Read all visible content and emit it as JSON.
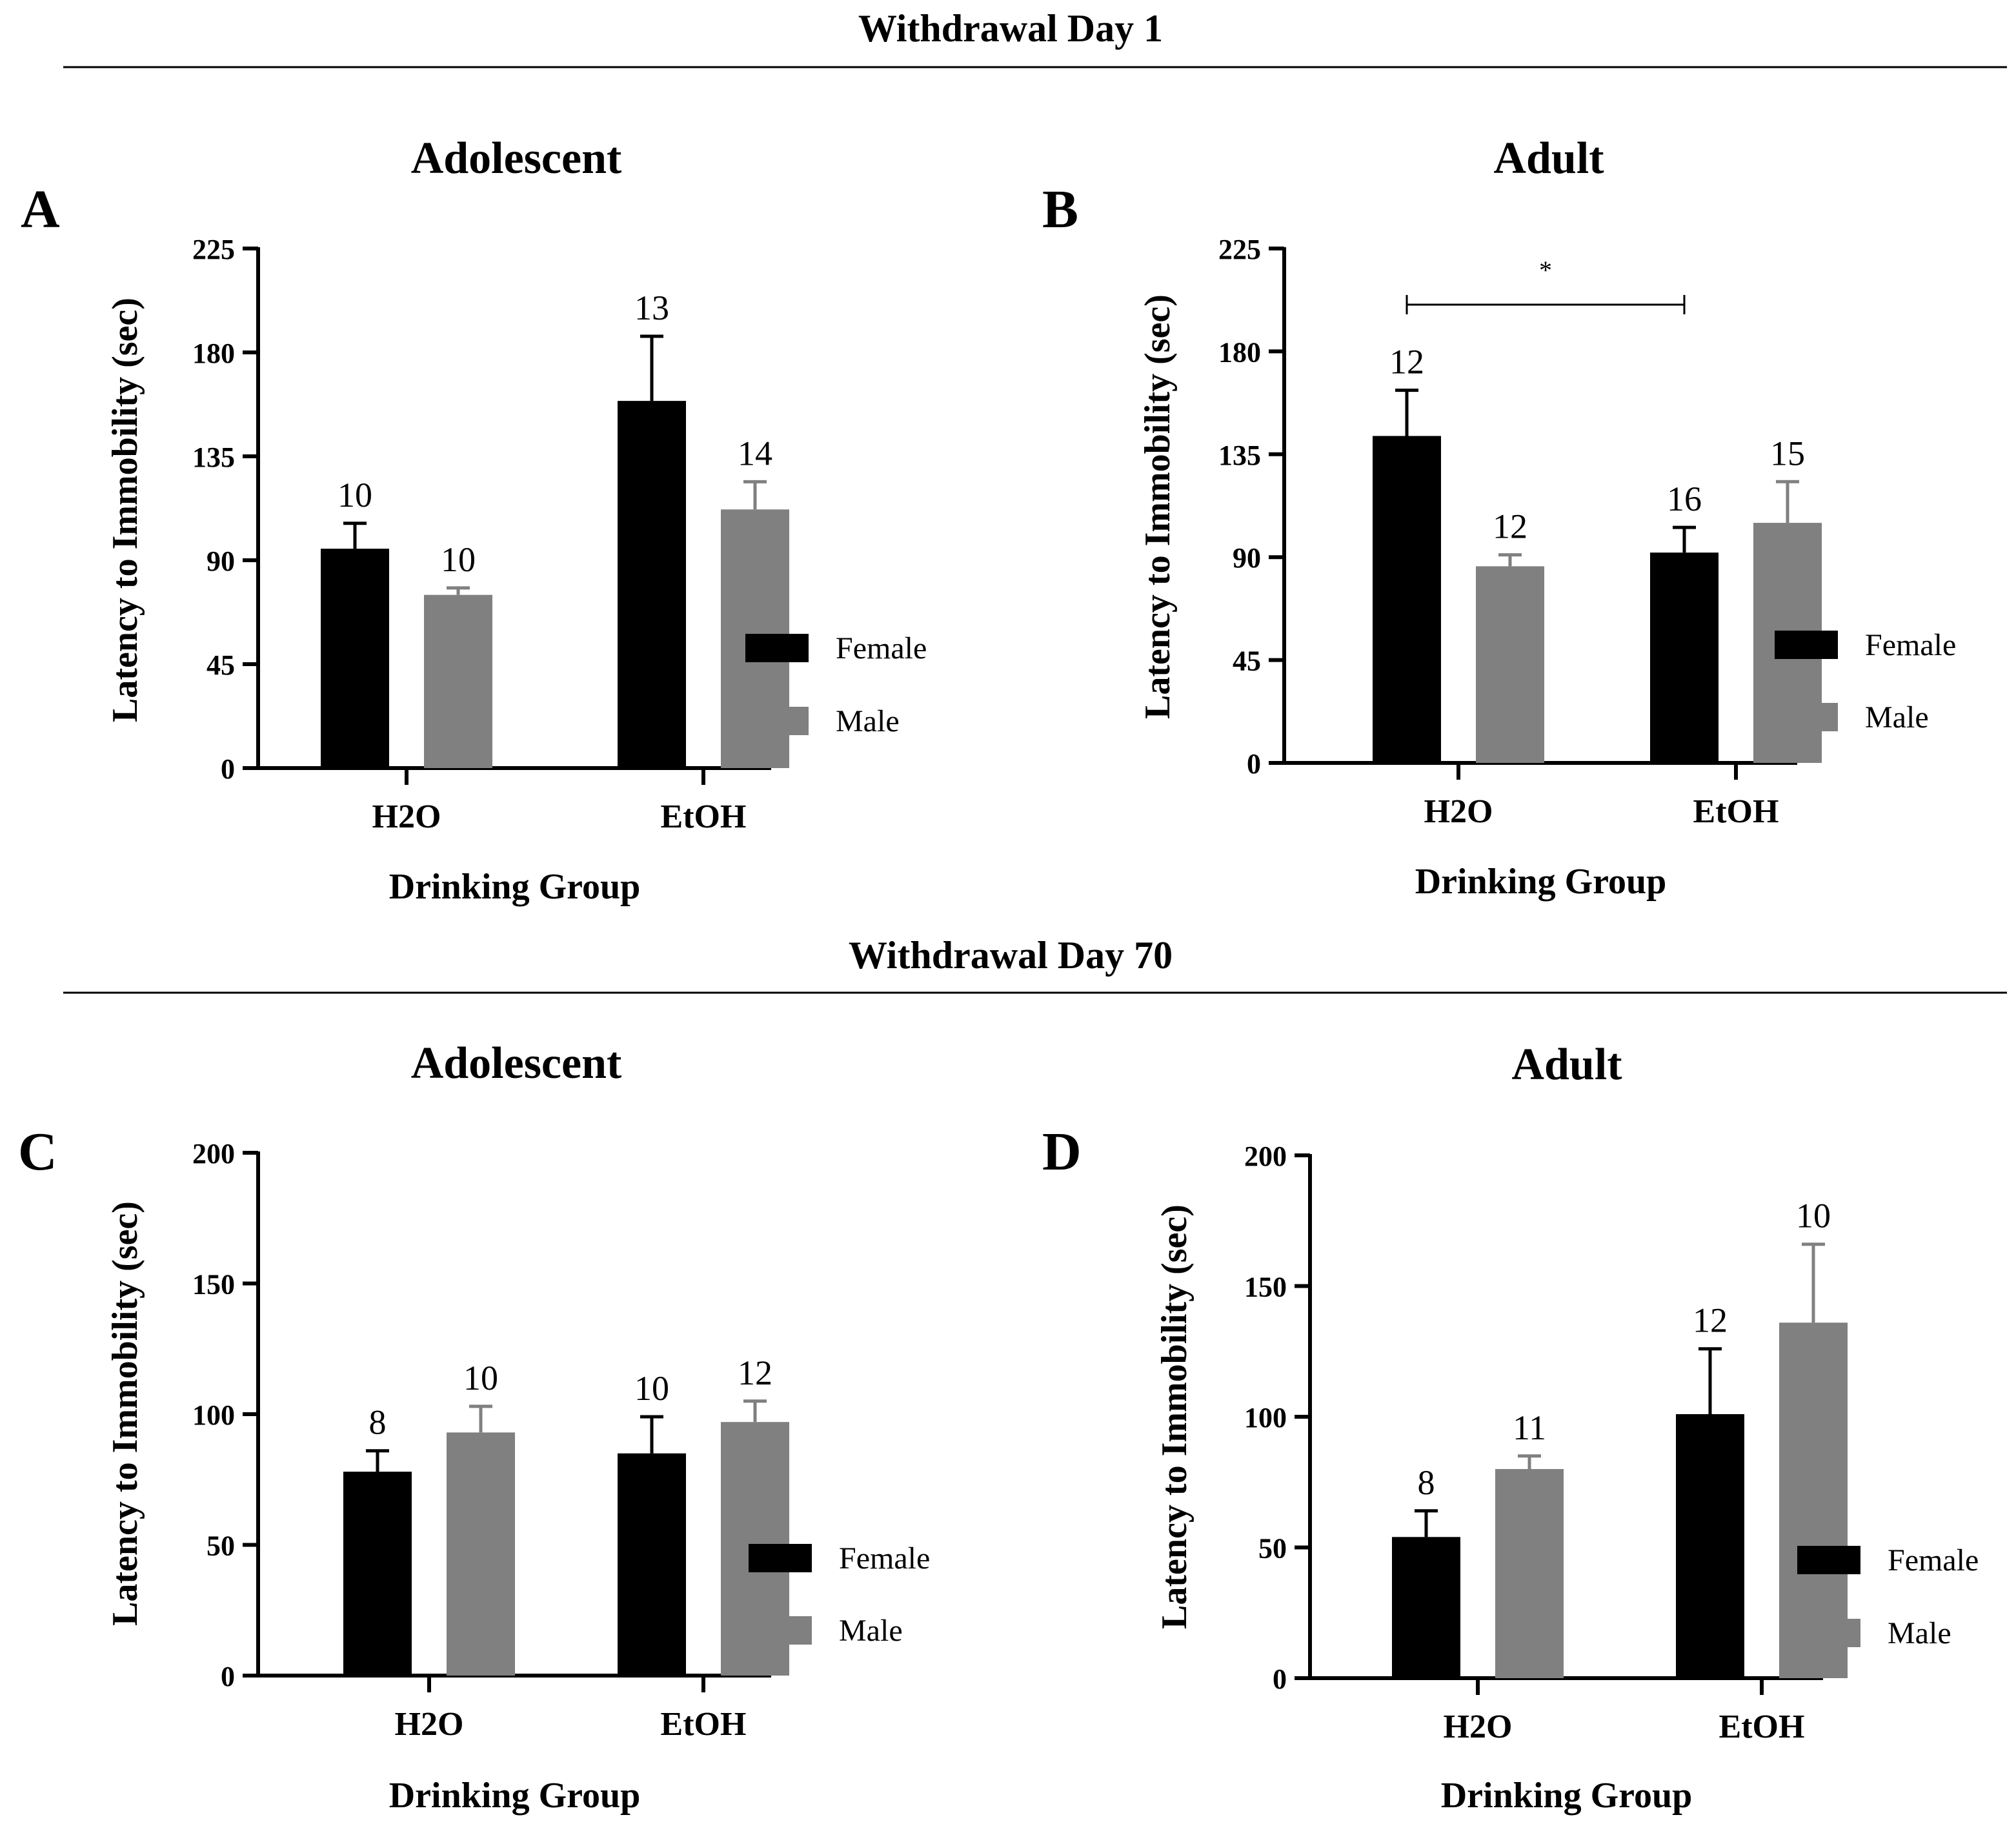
{
  "sections": [
    {
      "title": "Withdrawal Day 1"
    },
    {
      "title": "Withdrawal Day 70"
    }
  ],
  "colors": {
    "female": "#000000",
    "male": "#808080",
    "male_error": "#808080"
  },
  "chart_data": [
    {
      "type": "bar",
      "panel": "A",
      "title": "Adolescent",
      "xlabel": "Drinking Group",
      "ylabel": "Latency to Immobility (sec)",
      "ylim": [
        0,
        225
      ],
      "yticks": [
        "0",
        "45",
        "90",
        "135",
        "180",
        "225"
      ],
      "categories": [
        "H2O",
        "EtOH"
      ],
      "series": [
        {
          "name": "Female",
          "values": [
            95,
            159
          ],
          "errors": [
            11,
            28
          ],
          "n": [
            "10",
            "13"
          ]
        },
        {
          "name": "Male",
          "values": [
            75,
            112
          ],
          "errors": [
            3,
            12
          ],
          "n": [
            "10",
            "14"
          ]
        }
      ],
      "legend": [
        "Female",
        "Male"
      ],
      "legend_position": "right"
    },
    {
      "type": "bar",
      "panel": "B",
      "title": "Adult",
      "xlabel": "Drinking Group",
      "ylabel": "Latency to Immobility (sec)",
      "ylim": [
        0,
        225
      ],
      "yticks": [
        "0",
        "45",
        "90",
        "135",
        "180",
        "225"
      ],
      "categories": [
        "H2O",
        "EtOH"
      ],
      "series": [
        {
          "name": "Female",
          "values": [
            143,
            92
          ],
          "errors": [
            20,
            11
          ],
          "n": [
            "12",
            "16"
          ]
        },
        {
          "name": "Male",
          "values": [
            86,
            105
          ],
          "errors": [
            5,
            18
          ],
          "n": [
            "12",
            "15"
          ]
        }
      ],
      "legend": [
        "Female",
        "Male"
      ],
      "legend_position": "right",
      "significance": {
        "label": "*",
        "bracket": "H2O Female to EtOH Female"
      }
    },
    {
      "type": "bar",
      "panel": "C",
      "title": "Adolescent",
      "xlabel": "Drinking Group",
      "ylabel": "Latency to Immobility (sec)",
      "ylim": [
        0,
        200
      ],
      "yticks": [
        "0",
        "50",
        "100",
        "150",
        "200"
      ],
      "categories": [
        "H2O",
        "EtOH"
      ],
      "series": [
        {
          "name": "Female",
          "values": [
            78,
            85
          ],
          "errors": [
            8,
            14
          ],
          "n": [
            "8",
            "10"
          ]
        },
        {
          "name": "Male",
          "values": [
            93,
            97
          ],
          "errors": [
            10,
            8
          ],
          "n": [
            "10",
            "12"
          ]
        }
      ],
      "legend": [
        "Female",
        "Male"
      ],
      "legend_position": "right"
    },
    {
      "type": "bar",
      "panel": "D",
      "title": "Adult",
      "xlabel": "Drinking Group",
      "ylabel": "Latency to Immobility (sec)",
      "ylim": [
        0,
        200
      ],
      "yticks": [
        "0",
        "50",
        "100",
        "150",
        "200"
      ],
      "categories": [
        "H2O",
        "EtOH"
      ],
      "series": [
        {
          "name": "Female",
          "values": [
            54,
            101
          ],
          "errors": [
            10,
            25
          ],
          "n": [
            "8",
            "12"
          ]
        },
        {
          "name": "Male",
          "values": [
            80,
            136
          ],
          "errors": [
            5,
            30
          ],
          "n": [
            "11",
            "10"
          ]
        }
      ],
      "legend": [
        "Female",
        "Male"
      ],
      "legend_position": "right"
    }
  ]
}
